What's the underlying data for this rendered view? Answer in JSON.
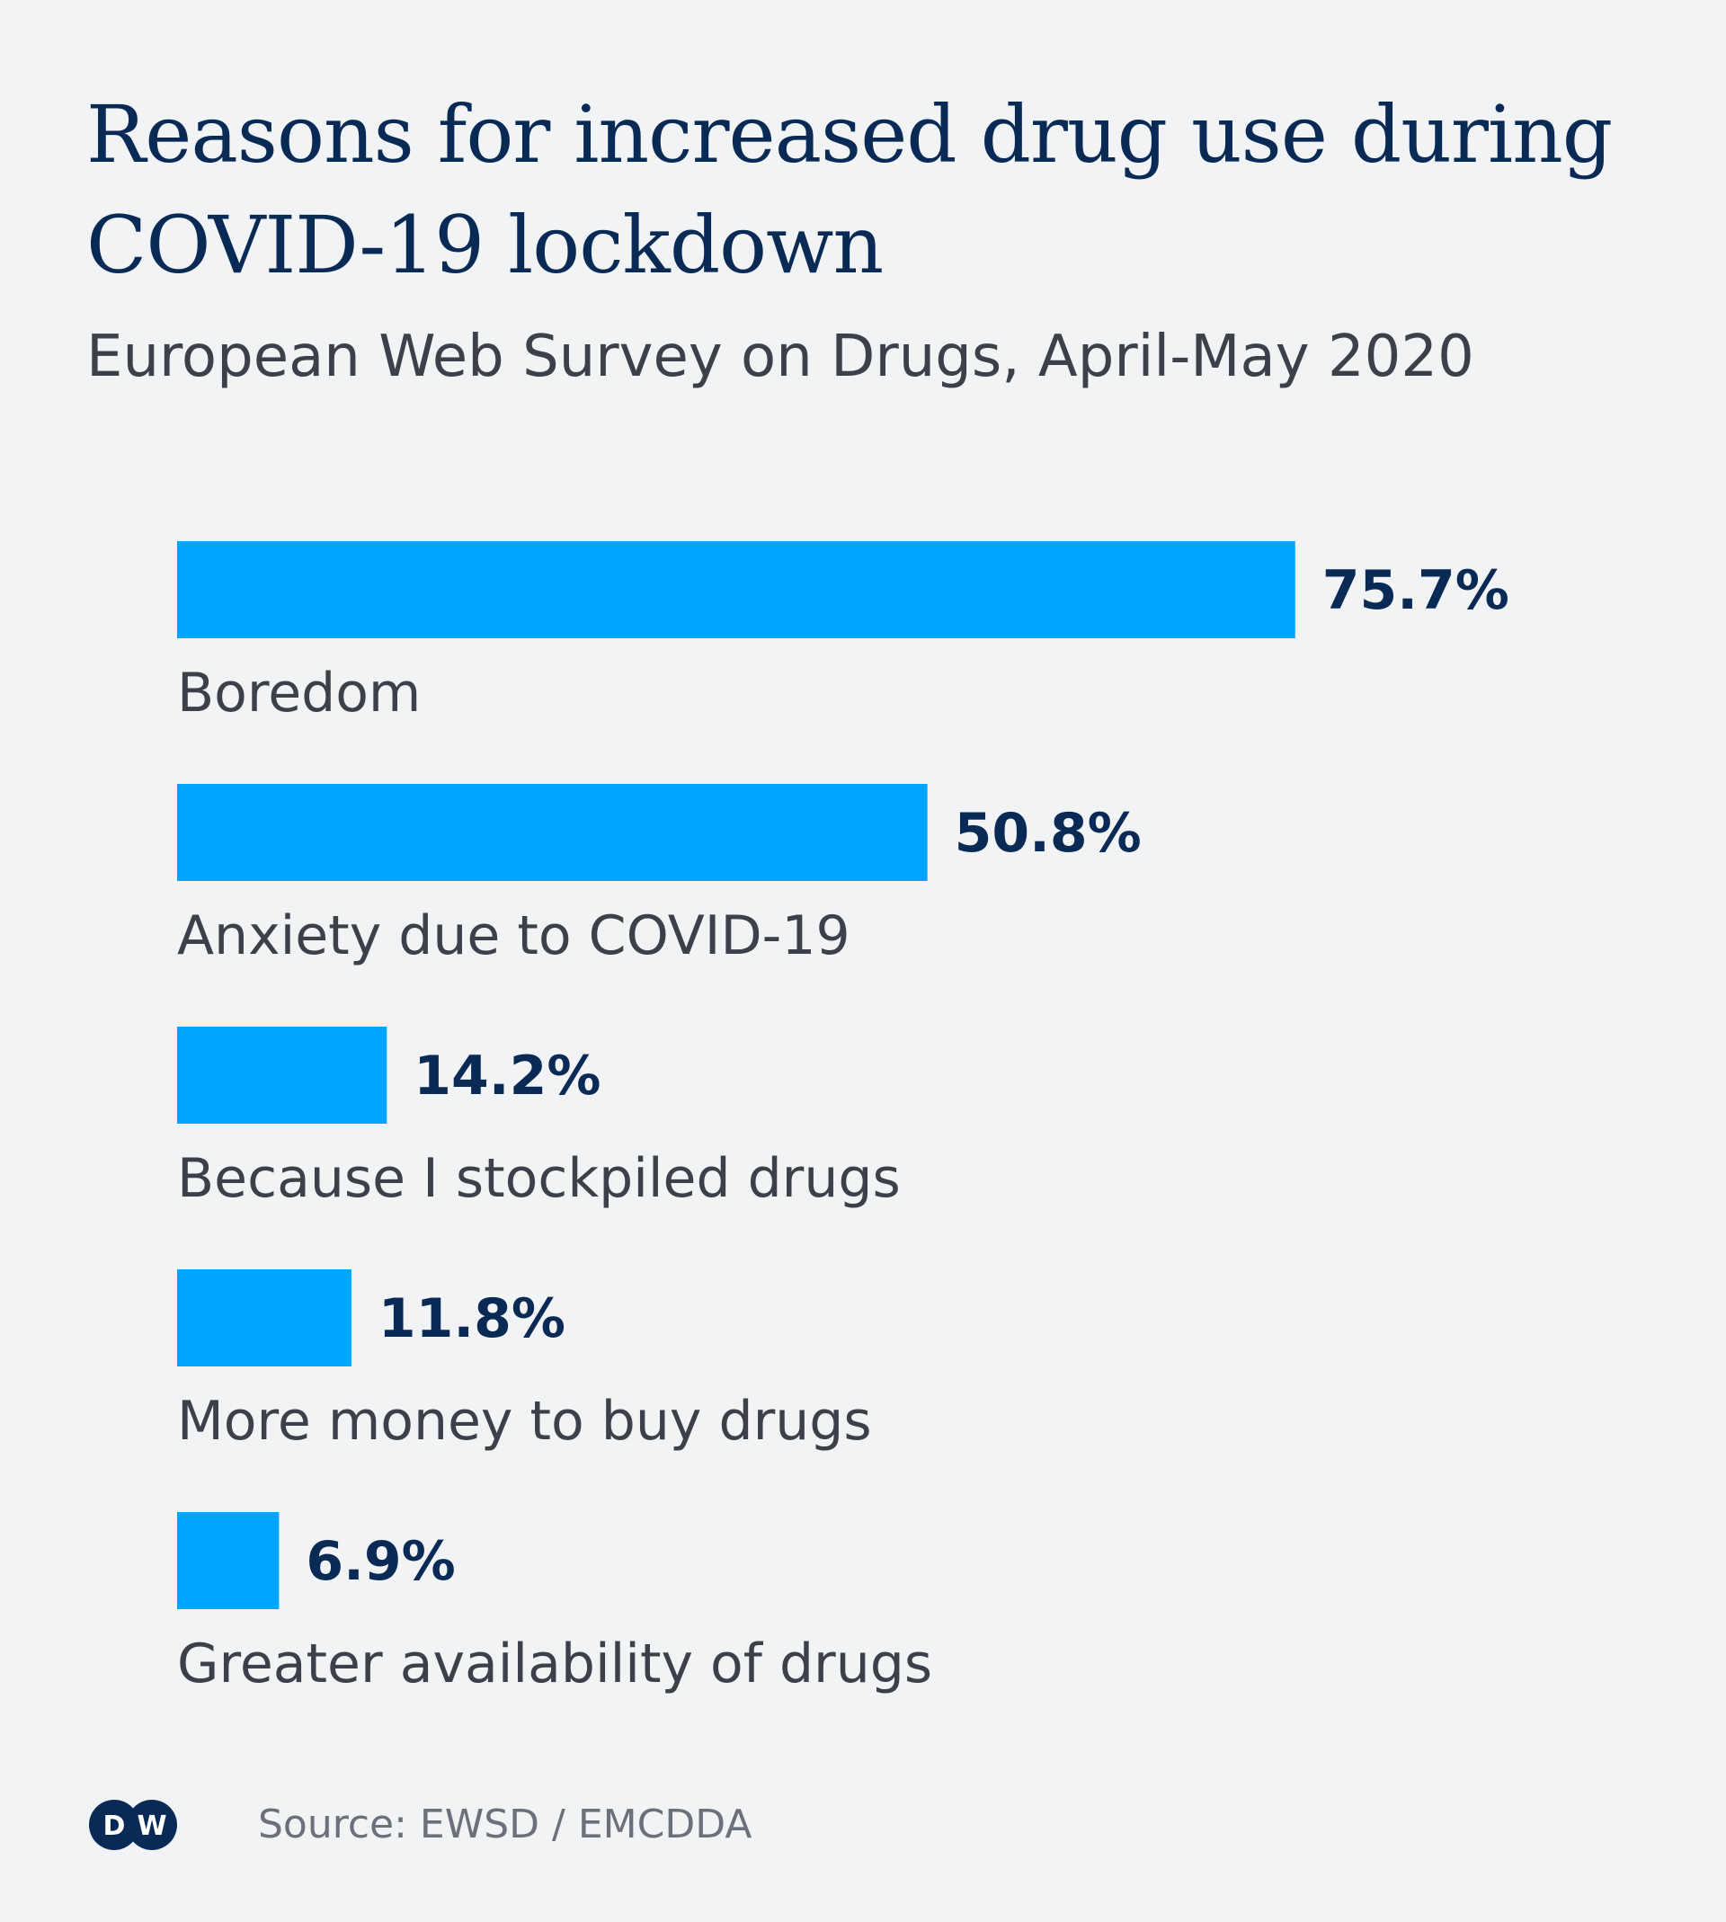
{
  "header": {
    "title": "Reasons for increased drug use during COVID-19 lockdown",
    "subtitle": "European Web Survey on Drugs, April-May 2020"
  },
  "chart_data": {
    "type": "bar",
    "orientation": "horizontal",
    "categories": [
      "Boredom",
      "Anxiety due to COVID-19",
      "Because I stockpiled drugs",
      "More money to buy drugs",
      "Greater availability of drugs"
    ],
    "values": [
      75.7,
      50.8,
      14.2,
      11.8,
      6.9
    ],
    "value_labels": [
      "75.7%",
      "50.8%",
      "14.2%",
      "11.8%",
      "6.9%"
    ],
    "unit": "%",
    "xlim": [
      0,
      100
    ],
    "grid": false,
    "legend": "none",
    "bar_color": "#00a5ff"
  },
  "footer": {
    "logo_text": "DW",
    "source": "Source: EWSD / EMCDDA"
  },
  "colors": {
    "background": "#f1f3f5",
    "title": "#0a2a56",
    "text": "#3c4049",
    "bar": "#00a5ff",
    "logo": "#0a2a56"
  }
}
